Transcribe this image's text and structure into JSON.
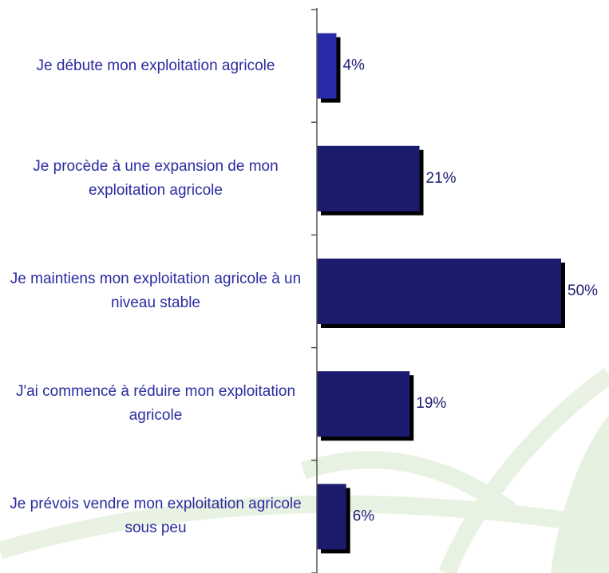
{
  "chart_data": {
    "type": "bar",
    "orientation": "horizontal",
    "categories": [
      "Je débute mon exploitation agricole",
      "Je procède à une expansion de mon exploitation agricole",
      "Je maintiens mon exploitation agricole à un niveau stable",
      "J'ai commencé à réduire mon exploitation agricole",
      "Je prévois vendre mon exploitation agricole sous peu"
    ],
    "values": [
      4,
      21,
      50,
      19,
      6
    ],
    "value_labels": [
      "4%",
      "21%",
      "50%",
      "19%",
      "6%"
    ],
    "colors": [
      "#2a2aa8",
      "#1c1c6e",
      "#1c1c6e",
      "#1c1c6e",
      "#1c1c6e"
    ]
  }
}
